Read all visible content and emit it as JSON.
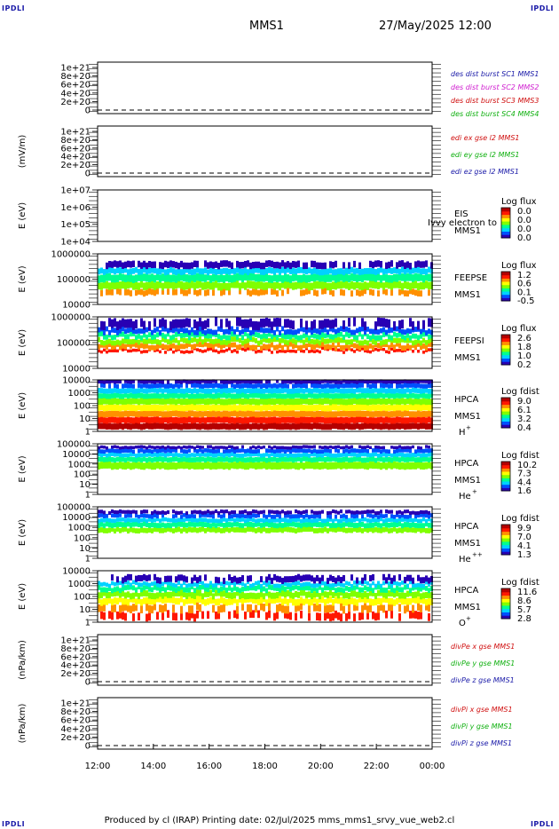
{
  "corner_labels": {
    "top_left": "IPDLI",
    "top_right": "IPDLI",
    "bottom_left": "IPDLI",
    "bottom_right": "IPDLI"
  },
  "header": {
    "spacecraft": "MMS1",
    "datetime": "27/May/2025 12:00"
  },
  "footer": "Produced by cl (IRAP)   Printing date: 02/Jul/2025   mms_mms1_srvy_vue_web2.cl",
  "colors": {
    "rainbow": [
      "#2800b4",
      "#0050ff",
      "#00d2ff",
      "#00ff90",
      "#80ff00",
      "#ffff00",
      "#ff9000",
      "#ff1800",
      "#b40000"
    ]
  },
  "chart_data": {
    "type": "heatmap",
    "time_axis": {
      "ticks": [
        "12:00",
        "14:00",
        "16:00",
        "18:00",
        "20:00",
        "22:00",
        "00:00"
      ],
      "range_hours": [
        12,
        24
      ]
    },
    "panels": [
      {
        "id": "des-dist",
        "type": "line",
        "ylabel": "",
        "yticks": [
          "1e+21",
          "8e+20",
          "6e+20",
          "4e+20",
          "2e+20",
          "0"
        ],
        "legend": [
          {
            "text": "des dist burst SC1 MMS1",
            "color": "#1a1aa8"
          },
          {
            "text": "des dist burst SC2 MMS2",
            "color": "#d020d0"
          },
          {
            "text": "des dist burst SC3 MMS3",
            "color": "#d01010"
          },
          {
            "text": "des dist burst SC4 MMS4",
            "color": "#10b010"
          }
        ],
        "zero_line": true
      },
      {
        "id": "edi-e",
        "type": "line",
        "ylabel": "(mV/m)",
        "yticks": [
          "1e+21",
          "8e+20",
          "6e+20",
          "4e+20",
          "2e+20",
          "0"
        ],
        "legend": [
          {
            "text": "edi ex gse l2 MMS1",
            "color": "#d01010"
          },
          {
            "text": "edi ey gse l2 MMS1",
            "color": "#10b010"
          },
          {
            "text": "edi ez gse l2 MMS1",
            "color": "#1a1aa8"
          }
        ],
        "zero_line": true
      },
      {
        "id": "eis",
        "type": "heatmap",
        "ylabel": "E (eV)",
        "yticks": [
          "1e+07",
          "1e+06",
          "1e+05",
          "1e+04"
        ],
        "instrument": [
          "EIS",
          "MMS1"
        ],
        "overlay": "Ivvy electron to",
        "cbar_title": "Log flux",
        "cbar_ticks": [
          "0.0",
          "0.0",
          "0.0",
          "0.0"
        ],
        "empty": true
      },
      {
        "id": "feepse",
        "type": "heatmap",
        "ylabel": "E (eV)",
        "yticks": [
          "1000000",
          "100000",
          "10000"
        ],
        "instrument": [
          "FEEPSE",
          "MMS1"
        ],
        "cbar_title": "Log flux",
        "cbar_ticks": [
          "1.2",
          "0.6",
          "0.1",
          "-0.5"
        ]
      },
      {
        "id": "feepsi",
        "type": "heatmap",
        "ylabel": "E (eV)",
        "yticks": [
          "1000000",
          "100000",
          "10000"
        ],
        "instrument": [
          "FEEPSI",
          "MMS1"
        ],
        "cbar_title": "Log flux",
        "cbar_ticks": [
          "2.6",
          "1.8",
          "1.0",
          "0.2"
        ]
      },
      {
        "id": "hpca-h",
        "type": "heatmap",
        "ylabel": "E (eV)",
        "yticks": [
          "10000",
          "1000",
          "100",
          "10",
          "1"
        ],
        "instrument": [
          "HPCA",
          "MMS1"
        ],
        "species": "H",
        "species_sup": "+",
        "cbar_title": "Log fdist",
        "cbar_ticks": [
          "9.0",
          "6.1",
          "3.2",
          "0.4"
        ]
      },
      {
        "id": "hpca-he",
        "type": "heatmap",
        "ylabel": "E (eV)",
        "yticks": [
          "100000",
          "10000",
          "1000",
          "100",
          "10",
          "1"
        ],
        "instrument": [
          "HPCA",
          "MMS1"
        ],
        "species": "He",
        "species_sup": "+",
        "cbar_title": "Log fdist",
        "cbar_ticks": [
          "10.2",
          "7.3",
          "4.4",
          "1.6"
        ]
      },
      {
        "id": "hpca-hepp",
        "type": "heatmap",
        "ylabel": "E (eV)",
        "yticks": [
          "100000",
          "10000",
          "1000",
          "100",
          "10",
          "1"
        ],
        "instrument": [
          "HPCA",
          "MMS1"
        ],
        "species": "He",
        "species_sup": "++",
        "cbar_title": "Log fdist",
        "cbar_ticks": [
          "9.9",
          "7.0",
          "4.1",
          "1.3"
        ]
      },
      {
        "id": "hpca-o",
        "type": "heatmap",
        "ylabel": "E (eV)",
        "yticks": [
          "10000",
          "1000",
          "100",
          "10",
          "1"
        ],
        "instrument": [
          "HPCA",
          "MMS1"
        ],
        "species": "O",
        "species_sup": "+",
        "cbar_title": "Log fdist",
        "cbar_ticks": [
          "11.6",
          "8.6",
          "5.7",
          "2.8"
        ]
      },
      {
        "id": "divpe",
        "type": "line",
        "ylabel": "(nPa/km)",
        "yticks": [
          "1e+21",
          "8e+20",
          "6e+20",
          "4e+20",
          "2e+20",
          "0"
        ],
        "legend": [
          {
            "text": "divPe x gse MMS1",
            "color": "#d01010"
          },
          {
            "text": "divPe y gse MMS1",
            "color": "#10b010"
          },
          {
            "text": "divPe z gse MMS1",
            "color": "#1a1aa8"
          }
        ],
        "zero_line": true
      },
      {
        "id": "divpi",
        "type": "line",
        "ylabel": "(nPa/km)",
        "yticks": [
          "1e+21",
          "8e+20",
          "6e+20",
          "4e+20",
          "2e+20",
          "0"
        ],
        "legend": [
          {
            "text": "divPi x gse MMS1",
            "color": "#d01010"
          },
          {
            "text": "divPi y gse MMS1",
            "color": "#10b010"
          },
          {
            "text": "divPi z gse MMS1",
            "color": "#1a1aa8"
          }
        ],
        "zero_line": true
      }
    ]
  }
}
